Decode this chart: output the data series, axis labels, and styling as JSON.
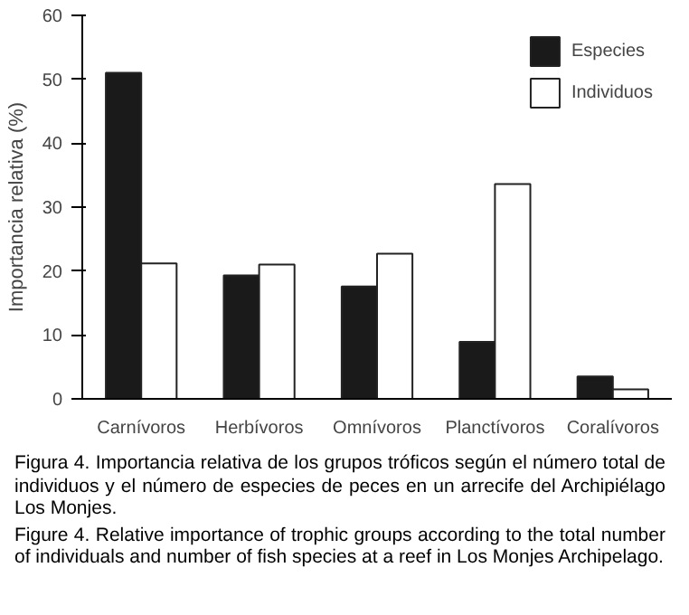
{
  "chart_data": {
    "type": "bar",
    "ylabel": "Importancia relativa (%)",
    "categories": [
      "Carnívoros",
      "Herbívoros",
      "Omnívoros",
      "Planctívoros",
      "Coralívoros"
    ],
    "series": [
      {
        "name": "Especies",
        "color": "#1a1a1a",
        "values": [
          51,
          19.3,
          17.6,
          8.9,
          3.5
        ]
      },
      {
        "name": "Individuos",
        "color": "#ffffff",
        "values": [
          21.2,
          21,
          22.7,
          33.6,
          1.5
        ]
      }
    ],
    "ylim": [
      0,
      60
    ],
    "yticks": [
      0,
      10,
      20,
      30,
      40,
      50,
      60
    ],
    "grid": false,
    "legend": "top right",
    "annotations": [
      "Figura 4. Importancia relativa de los grupos tróficos según el número total de individuos y el número de especies de peces en un arrecife del Archipiélago Los Monjes.",
      "Figure 4. Relative importance of trophic groups according to the total number of individuals and number of fish species at a reef in Los Monjes Archipelago."
    ]
  }
}
